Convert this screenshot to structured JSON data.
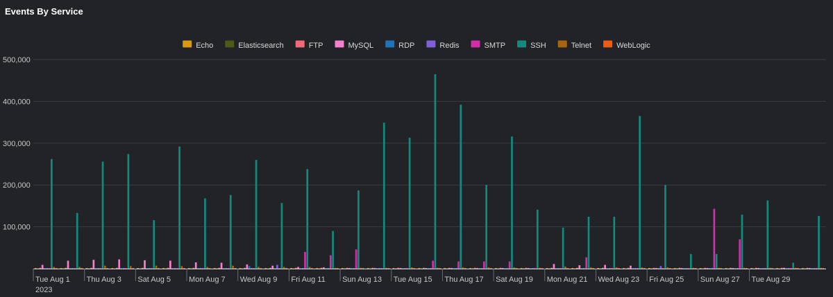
{
  "panel": {
    "title": "Events By Service"
  },
  "chart_data": {
    "type": "bar",
    "title": "Events By Service",
    "xlabel": "",
    "ylabel": "",
    "ylim": [
      0,
      500000
    ],
    "y_ticks": [
      "500,000",
      "400,000",
      "300,000",
      "200,000",
      "100,000"
    ],
    "grid": true,
    "legend_position": "top",
    "x_tick_labels": [
      {
        "day": 1,
        "label": "Tue Aug 1",
        "sublabel": "2023"
      },
      {
        "day": 3,
        "label": "Thu Aug 3"
      },
      {
        "day": 5,
        "label": "Sat Aug 5"
      },
      {
        "day": 7,
        "label": "Mon Aug 7"
      },
      {
        "day": 9,
        "label": "Wed Aug 9"
      },
      {
        "day": 11,
        "label": "Fri Aug 11"
      },
      {
        "day": 13,
        "label": "Sun Aug 13"
      },
      {
        "day": 15,
        "label": "Tue Aug 15"
      },
      {
        "day": 17,
        "label": "Thu Aug 17"
      },
      {
        "day": 19,
        "label": "Sat Aug 19"
      },
      {
        "day": 21,
        "label": "Mon Aug 21"
      },
      {
        "day": 23,
        "label": "Wed Aug 23"
      },
      {
        "day": 25,
        "label": "Fri Aug 25"
      },
      {
        "day": 27,
        "label": "Sun Aug 27"
      },
      {
        "day": 29,
        "label": "Tue Aug 29"
      }
    ],
    "categories": [
      "2023-08-01",
      "2023-08-02",
      "2023-08-03",
      "2023-08-04",
      "2023-08-05",
      "2023-08-06",
      "2023-08-07",
      "2023-08-08",
      "2023-08-09",
      "2023-08-10",
      "2023-08-11",
      "2023-08-12",
      "2023-08-13",
      "2023-08-14",
      "2023-08-15",
      "2023-08-16",
      "2023-08-17",
      "2023-08-18",
      "2023-08-19",
      "2023-08-20",
      "2023-08-21",
      "2023-08-22",
      "2023-08-23",
      "2023-08-24",
      "2023-08-25",
      "2023-08-26",
      "2023-08-27",
      "2023-08-28",
      "2023-08-29",
      "2023-08-30",
      "2023-08-31"
    ],
    "series": [
      {
        "name": "Echo",
        "color": "#d99a12",
        "values": [
          1000,
          1000,
          1000,
          1000,
          1000,
          1000,
          1000,
          1000,
          1000,
          1000,
          1000,
          1000,
          1000,
          1000,
          1000,
          1000,
          1000,
          1000,
          1000,
          1000,
          1000,
          1000,
          1000,
          1000,
          1000,
          1000,
          1000,
          1000,
          1000,
          1000,
          1000
        ]
      },
      {
        "name": "Elasticsearch",
        "color": "#4b5a16",
        "values": [
          500,
          500,
          500,
          500,
          500,
          500,
          500,
          500,
          500,
          500,
          500,
          500,
          500,
          500,
          500,
          500,
          500,
          500,
          500,
          500,
          500,
          500,
          500,
          500,
          500,
          500,
          500,
          500,
          500,
          500,
          500
        ]
      },
      {
        "name": "FTP",
        "color": "#f26a78",
        "values": [
          2000,
          2000,
          2000,
          2000,
          2000,
          2000,
          2000,
          2000,
          2000,
          2000,
          2000,
          2000,
          2000,
          2000,
          2000,
          2000,
          2000,
          2000,
          2000,
          2000,
          2000,
          2000,
          2000,
          2000,
          2000,
          2000,
          2000,
          2000,
          2000,
          2000,
          2000
        ]
      },
      {
        "name": "MySQL",
        "color": "#f57fcd",
        "values": [
          9000,
          19000,
          21000,
          22000,
          20000,
          19000,
          15000,
          14000,
          10000,
          7000,
          4000,
          3000,
          1000,
          1000,
          1000,
          1000,
          1000,
          1000,
          1000,
          1000,
          11000,
          8000,
          9000,
          7000,
          1000,
          1000,
          1000,
          1000,
          1000,
          2000,
          1000
        ]
      },
      {
        "name": "RDP",
        "color": "#1d74b8",
        "values": [
          1000,
          1000,
          1000,
          1000,
          1000,
          1000,
          1000,
          1000,
          6000,
          1000,
          1000,
          1000,
          1000,
          1000,
          1000,
          1000,
          1000,
          1000,
          1000,
          1000,
          1000,
          1000,
          1000,
          1000,
          1000,
          1000,
          1000,
          1000,
          1000,
          1000,
          1000
        ]
      },
      {
        "name": "Redis",
        "color": "#8060d8",
        "values": [
          1000,
          1000,
          1000,
          1000,
          1000,
          1000,
          1000,
          1000,
          1000,
          9000,
          1000,
          1000,
          1000,
          1000,
          1000,
          1000,
          1000,
          1000,
          1000,
          1000,
          1000,
          1000,
          1000,
          1000,
          6000,
          1000,
          1000,
          1000,
          1000,
          1000,
          1000
        ]
      },
      {
        "name": "SMTP",
        "color": "#d12fa8",
        "values": [
          1000,
          1000,
          1000,
          1000,
          1000,
          1000,
          1000,
          1000,
          1000,
          1000,
          40000,
          32000,
          46000,
          1000,
          1000,
          19000,
          17000,
          17000,
          17000,
          1000,
          1000,
          27000,
          1000,
          1000,
          1000,
          1000,
          143000,
          70000,
          1000,
          1000,
          1000
        ]
      },
      {
        "name": "SSH",
        "color": "#138a7e",
        "values": [
          262000,
          133000,
          256000,
          274000,
          116000,
          292000,
          168000,
          176000,
          260000,
          157000,
          238000,
          90000,
          187000,
          349000,
          313000,
          465000,
          392000,
          200000,
          316000,
          141000,
          98000,
          124000,
          124000,
          365000,
          200000,
          35000,
          35000,
          129000,
          163000,
          14000,
          126000
        ]
      },
      {
        "name": "Telnet",
        "color": "#a6650f",
        "values": [
          4000,
          4000,
          7000,
          6000,
          7000,
          6000,
          4000,
          7000,
          4000,
          4000,
          4000,
          2000,
          2000,
          2000,
          3000,
          2000,
          3000,
          3000,
          3000,
          2000,
          5000,
          3000,
          3000,
          3000,
          3000,
          2000,
          2000,
          2000,
          2000,
          2000,
          2000
        ]
      },
      {
        "name": "WebLogic",
        "color": "#f05a14",
        "values": [
          500,
          500,
          500,
          500,
          500,
          500,
          500,
          500,
          500,
          500,
          500,
          500,
          500,
          500,
          500,
          500,
          500,
          500,
          500,
          500,
          500,
          500,
          500,
          500,
          500,
          500,
          500,
          500,
          500,
          500,
          500
        ]
      }
    ]
  }
}
